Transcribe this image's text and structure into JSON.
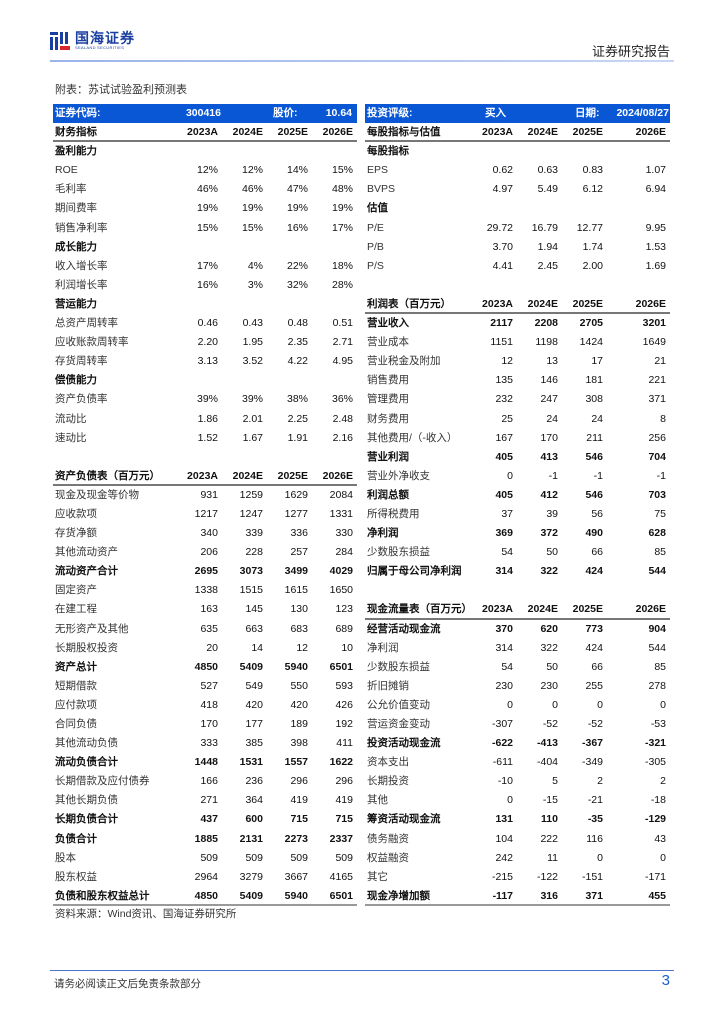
{
  "header": {
    "logo_cn": "国海证券",
    "logo_en": "SEALAND SECURITIES",
    "report_type": "证券研究报告",
    "brand_color": "#0a57d6"
  },
  "caption": "附表：苏试试验盈利预测表",
  "left": {
    "band": {
      "code_label": "证券代码:",
      "code": "300416",
      "price_label": "股价:",
      "price": "10.64"
    },
    "rows": [
      {
        "type": "header",
        "label": "财务指标",
        "values": [
          "2023A",
          "2024E",
          "2025E",
          "2026E"
        ]
      },
      {
        "type": "section",
        "label": "盈利能力",
        "values": []
      },
      {
        "type": "normal",
        "label": "ROE",
        "values": [
          "12%",
          "12%",
          "14%",
          "15%"
        ]
      },
      {
        "type": "normal",
        "label": "毛利率",
        "values": [
          "46%",
          "46%",
          "47%",
          "48%"
        ]
      },
      {
        "type": "normal",
        "label": "期间费率",
        "values": [
          "19%",
          "19%",
          "19%",
          "19%"
        ]
      },
      {
        "type": "normal",
        "label": "销售净利率",
        "values": [
          "15%",
          "15%",
          "16%",
          "17%"
        ]
      },
      {
        "type": "section",
        "label": "成长能力",
        "values": []
      },
      {
        "type": "normal",
        "label": "收入增长率",
        "values": [
          "17%",
          "4%",
          "22%",
          "18%"
        ]
      },
      {
        "type": "normal",
        "label": "利润增长率",
        "values": [
          "16%",
          "3%",
          "32%",
          "28%"
        ]
      },
      {
        "type": "section",
        "label": "营运能力",
        "values": []
      },
      {
        "type": "normal",
        "label": "总资产周转率",
        "values": [
          "0.46",
          "0.43",
          "0.48",
          "0.51"
        ]
      },
      {
        "type": "normal",
        "label": "应收账款周转率",
        "values": [
          "2.20",
          "1.95",
          "2.35",
          "2.71"
        ]
      },
      {
        "type": "normal",
        "label": "存货周转率",
        "values": [
          "3.13",
          "3.52",
          "4.22",
          "4.95"
        ]
      },
      {
        "type": "section",
        "label": "偿债能力",
        "values": []
      },
      {
        "type": "normal",
        "label": "资产负债率",
        "values": [
          "39%",
          "39%",
          "38%",
          "36%"
        ]
      },
      {
        "type": "normal",
        "label": "流动比",
        "values": [
          "1.86",
          "2.01",
          "2.25",
          "2.48"
        ]
      },
      {
        "type": "normal",
        "label": "速动比",
        "values": [
          "1.52",
          "1.67",
          "1.91",
          "2.16"
        ]
      },
      {
        "type": "blank",
        "label": "",
        "values": []
      },
      {
        "type": "header",
        "label": "资产负债表（百万元）",
        "values": [
          "2023A",
          "2024E",
          "2025E",
          "2026E"
        ]
      },
      {
        "type": "normal",
        "label": "现金及现金等价物",
        "values": [
          "931",
          "1259",
          "1629",
          "2084"
        ]
      },
      {
        "type": "normal",
        "label": "应收款项",
        "values": [
          "1217",
          "1247",
          "1277",
          "1331"
        ]
      },
      {
        "type": "normal",
        "label": "存货净额",
        "values": [
          "340",
          "339",
          "336",
          "330"
        ]
      },
      {
        "type": "normal",
        "label": "其他流动资产",
        "values": [
          "206",
          "228",
          "257",
          "284"
        ]
      },
      {
        "type": "bold",
        "label": "流动资产合计",
        "values": [
          "2695",
          "3073",
          "3499",
          "4029"
        ]
      },
      {
        "type": "normal",
        "label": "固定资产",
        "values": [
          "1338",
          "1515",
          "1615",
          "1650"
        ]
      },
      {
        "type": "normal",
        "label": "在建工程",
        "values": [
          "163",
          "145",
          "130",
          "123"
        ]
      },
      {
        "type": "normal",
        "label": "无形资产及其他",
        "values": [
          "635",
          "663",
          "683",
          "689"
        ]
      },
      {
        "type": "normal",
        "label": "长期股权投资",
        "values": [
          "20",
          "14",
          "12",
          "10"
        ]
      },
      {
        "type": "bold",
        "label": "资产总计",
        "values": [
          "4850",
          "5409",
          "5940",
          "6501"
        ]
      },
      {
        "type": "normal",
        "label": "短期借款",
        "values": [
          "527",
          "549",
          "550",
          "593"
        ]
      },
      {
        "type": "normal",
        "label": "应付款项",
        "values": [
          "418",
          "420",
          "420",
          "426"
        ]
      },
      {
        "type": "normal",
        "label": "合同负债",
        "values": [
          "170",
          "177",
          "189",
          "192"
        ]
      },
      {
        "type": "normal",
        "label": "其他流动负债",
        "values": [
          "333",
          "385",
          "398",
          "411"
        ]
      },
      {
        "type": "bold",
        "label": "流动负债合计",
        "values": [
          "1448",
          "1531",
          "1557",
          "1622"
        ]
      },
      {
        "type": "normal",
        "label": "长期借款及应付债券",
        "values": [
          "166",
          "236",
          "296",
          "296"
        ]
      },
      {
        "type": "normal",
        "label": "其他长期负债",
        "values": [
          "271",
          "364",
          "419",
          "419"
        ]
      },
      {
        "type": "bold",
        "label": "长期负债合计",
        "values": [
          "437",
          "600",
          "715",
          "715"
        ]
      },
      {
        "type": "bold",
        "label": "负债合计",
        "values": [
          "1885",
          "2131",
          "2273",
          "2337"
        ]
      },
      {
        "type": "normal",
        "label": "股本",
        "values": [
          "509",
          "509",
          "509",
          "509"
        ]
      },
      {
        "type": "normal",
        "label": "股东权益",
        "values": [
          "2964",
          "3279",
          "3667",
          "4165"
        ]
      },
      {
        "type": "bold last",
        "label": "负债和股东权益总计",
        "values": [
          "4850",
          "5409",
          "5940",
          "6501"
        ]
      }
    ]
  },
  "right": {
    "band": {
      "rating_label": "投资评级:",
      "rating": "买入",
      "date_label": "日期:",
      "date": "2024/08/27"
    },
    "rows": [
      {
        "type": "header",
        "label": "每股指标与估值",
        "values": [
          "2023A",
          "2024E",
          "2025E",
          "2026E"
        ]
      },
      {
        "type": "section",
        "label": "每股指标",
        "values": []
      },
      {
        "type": "normal",
        "label": "EPS",
        "values": [
          "0.62",
          "0.63",
          "0.83",
          "1.07"
        ]
      },
      {
        "type": "normal",
        "label": "BVPS",
        "values": [
          "4.97",
          "5.49",
          "6.12",
          "6.94"
        ]
      },
      {
        "type": "section",
        "label": "估值",
        "values": []
      },
      {
        "type": "normal",
        "label": "P/E",
        "values": [
          "29.72",
          "16.79",
          "12.77",
          "9.95"
        ]
      },
      {
        "type": "normal",
        "label": "P/B",
        "values": [
          "3.70",
          "1.94",
          "1.74",
          "1.53"
        ]
      },
      {
        "type": "normal",
        "label": "P/S",
        "values": [
          "4.41",
          "2.45",
          "2.00",
          "1.69"
        ]
      },
      {
        "type": "blank",
        "label": "",
        "values": []
      },
      {
        "type": "header",
        "label": "利润表（百万元）",
        "values": [
          "2023A",
          "2024E",
          "2025E",
          "2026E"
        ]
      },
      {
        "type": "bold",
        "label": "营业收入",
        "values": [
          "2117",
          "2208",
          "2705",
          "3201"
        ]
      },
      {
        "type": "normal",
        "label": "营业成本",
        "values": [
          "1151",
          "1198",
          "1424",
          "1649"
        ]
      },
      {
        "type": "normal",
        "label": "营业税金及附加",
        "values": [
          "12",
          "13",
          "17",
          "21"
        ]
      },
      {
        "type": "normal",
        "label": "销售费用",
        "values": [
          "135",
          "146",
          "181",
          "221"
        ]
      },
      {
        "type": "normal",
        "label": "管理费用",
        "values": [
          "232",
          "247",
          "308",
          "371"
        ]
      },
      {
        "type": "normal",
        "label": "财务费用",
        "values": [
          "25",
          "24",
          "24",
          "8"
        ]
      },
      {
        "type": "normal",
        "label": "其他费用/（-收入）",
        "values": [
          "167",
          "170",
          "211",
          "256"
        ]
      },
      {
        "type": "bold",
        "label": "营业利润",
        "values": [
          "405",
          "413",
          "546",
          "704"
        ]
      },
      {
        "type": "normal",
        "label": "营业外净收支",
        "values": [
          "0",
          "-1",
          "-1",
          "-1"
        ]
      },
      {
        "type": "bold",
        "label": "利润总额",
        "values": [
          "405",
          "412",
          "546",
          "703"
        ]
      },
      {
        "type": "normal",
        "label": "所得税费用",
        "values": [
          "37",
          "39",
          "56",
          "75"
        ]
      },
      {
        "type": "section",
        "label": "净利润",
        "values": [
          "369",
          "372",
          "490",
          "628"
        ]
      },
      {
        "type": "normal",
        "label": "少数股东损益",
        "values": [
          "54",
          "50",
          "66",
          "85"
        ]
      },
      {
        "type": "bold",
        "label": "归属于母公司净利润",
        "values": [
          "314",
          "322",
          "424",
          "544"
        ]
      },
      {
        "type": "blank",
        "label": "",
        "values": []
      },
      {
        "type": "header",
        "label": "现金流量表（百万元）",
        "values": [
          "2023A",
          "2024E",
          "2025E",
          "2026E"
        ]
      },
      {
        "type": "bold",
        "label": "经营活动现金流",
        "values": [
          "370",
          "620",
          "773",
          "904"
        ]
      },
      {
        "type": "normal",
        "label": "净利润",
        "values": [
          "314",
          "322",
          "424",
          "544"
        ]
      },
      {
        "type": "normal",
        "label": "少数股东损益",
        "values": [
          "54",
          "50",
          "66",
          "85"
        ]
      },
      {
        "type": "normal",
        "label": "折旧摊销",
        "values": [
          "230",
          "230",
          "255",
          "278"
        ]
      },
      {
        "type": "normal",
        "label": "公允价值变动",
        "values": [
          "0",
          "0",
          "0",
          "0"
        ]
      },
      {
        "type": "normal",
        "label": "营运资金变动",
        "values": [
          "-307",
          "-52",
          "-52",
          "-53"
        ]
      },
      {
        "type": "bold",
        "label": "投资活动现金流",
        "values": [
          "-622",
          "-413",
          "-367",
          "-321"
        ]
      },
      {
        "type": "normal",
        "label": "资本支出",
        "values": [
          "-611",
          "-404",
          "-349",
          "-305"
        ]
      },
      {
        "type": "normal",
        "label": "长期投资",
        "values": [
          "-10",
          "5",
          "2",
          "2"
        ]
      },
      {
        "type": "normal",
        "label": "其他",
        "values": [
          "0",
          "-15",
          "-21",
          "-18"
        ]
      },
      {
        "type": "bold",
        "label": "筹资活动现金流",
        "values": [
          "131",
          "110",
          "-35",
          "-129"
        ]
      },
      {
        "type": "normal",
        "label": "债务融资",
        "values": [
          "104",
          "222",
          "116",
          "43"
        ]
      },
      {
        "type": "normal",
        "label": "权益融资",
        "values": [
          "242",
          "11",
          "0",
          "0"
        ]
      },
      {
        "type": "normal",
        "label": "其它",
        "values": [
          "-215",
          "-122",
          "-151",
          "-171"
        ]
      },
      {
        "type": "bold last",
        "label": "现金净增加额",
        "values": [
          "-117",
          "316",
          "371",
          "455"
        ]
      }
    ]
  },
  "source": "资料来源：Wind资讯、国海证券研究所",
  "footer": {
    "disclaimer": "请务必阅读正文后免责条款部分",
    "page": "3"
  }
}
